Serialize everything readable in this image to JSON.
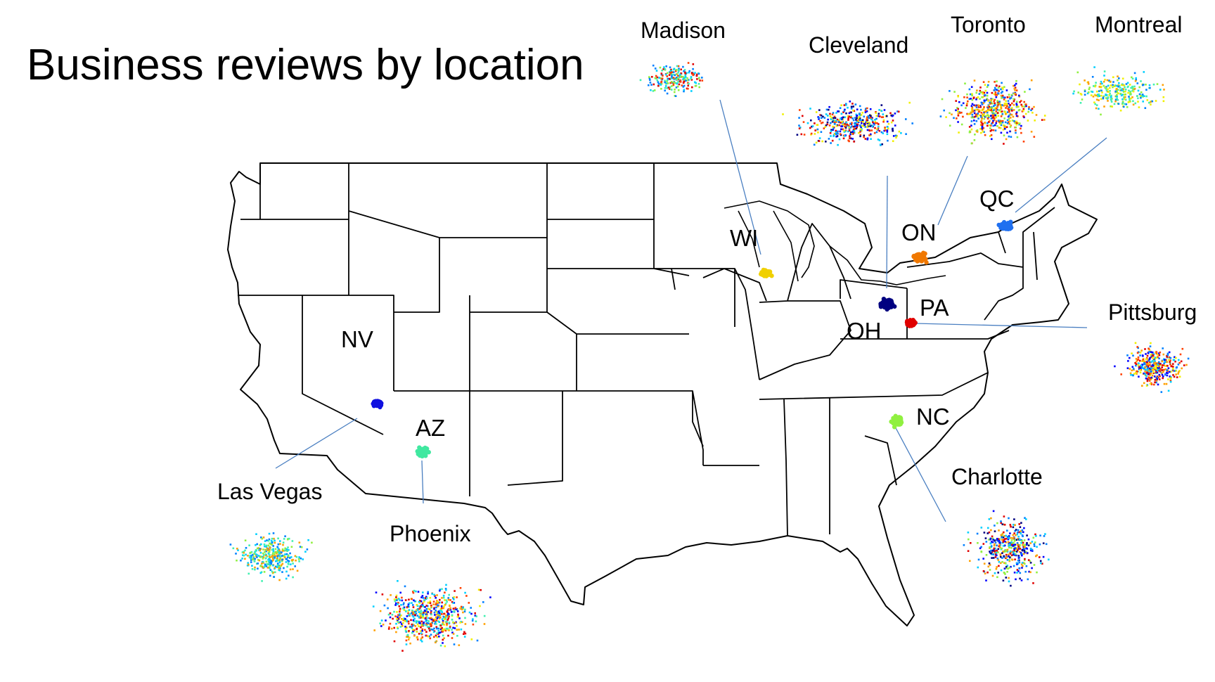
{
  "title": "Business reviews by location",
  "state_labels": [
    "NV",
    "AZ",
    "WI",
    "OH",
    "PA",
    "ON",
    "QC",
    "NC"
  ],
  "city_labels": [
    "Madison",
    "Cleveland",
    "Toronto",
    "Montreal",
    "Pittsburg",
    "Charlotte",
    "Phoenix",
    "Las Vegas"
  ],
  "map": {
    "outline_color": "#000000",
    "leader_line_color": "#4a7fc1"
  },
  "cluster_colors": {
    "NV": "#1010e0",
    "AZ": "#40e8a0",
    "WI": "#f0d000",
    "OH": "#000080",
    "PA": "#e00000",
    "ON": "#f07800",
    "QC": "#2070f0",
    "NC": "#90f040"
  },
  "palette": [
    "#000080",
    "#0000ff",
    "#0080ff",
    "#00d0ff",
    "#40f0b0",
    "#90f040",
    "#f0f000",
    "#ffa000",
    "#ff4000",
    "#e00000"
  ]
}
